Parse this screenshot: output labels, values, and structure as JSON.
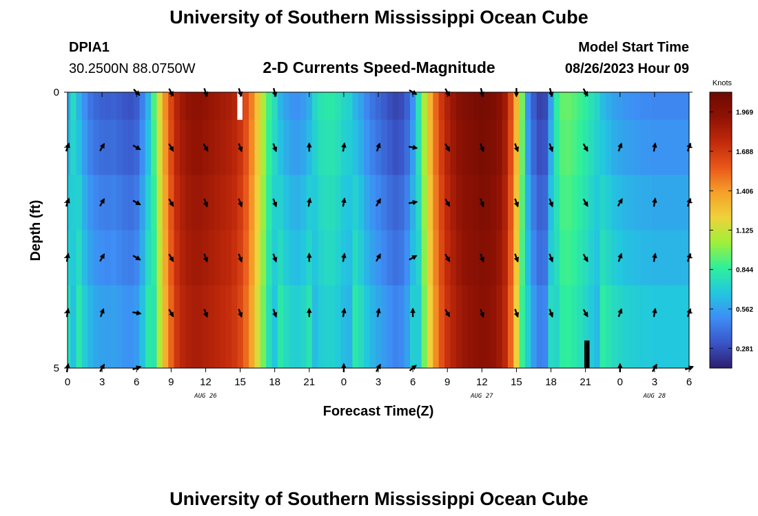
{
  "header": {
    "title": "University of Southern Mississippi Ocean Cube",
    "station_id": "DPIA1",
    "location": "30.2500N  88.0750W",
    "subtitle": "2-D Currents Speed-Magnitude",
    "model_start_label": "Model Start Time",
    "model_start_value": "08/26/2023 Hour 09"
  },
  "footer": {
    "title": "University of Southern Mississippi Ocean Cube"
  },
  "colors": {
    "palette": [
      "#2d1e6e",
      "#3a55c8",
      "#3e8df5",
      "#22c7df",
      "#2ff09a",
      "#9ef03a",
      "#efd23b",
      "#f6a029",
      "#e8571a",
      "#c22a0b",
      "#8f1204",
      "#6d0a02"
    ],
    "arrow": "#000000",
    "missing": "#ffffff",
    "extreme_low": "#000000"
  },
  "chart_data": {
    "type": "heatmap",
    "title": "2-D Currents Speed-Magnitude",
    "xlabel": "Forecast Time(Z)",
    "ylabel": "Depth (ft)",
    "x_range": [
      0,
      54
    ],
    "y_range": [
      0,
      5
    ],
    "x_ticks": [
      0,
      3,
      6,
      9,
      12,
      15,
      18,
      21,
      24,
      27,
      30,
      33,
      36,
      39,
      42,
      45,
      48,
      51,
      54
    ],
    "x_tick_labels": [
      "0",
      "3",
      "6",
      "9",
      "12",
      "15",
      "18",
      "21",
      "0",
      "3",
      "6",
      "9",
      "12",
      "15",
      "18",
      "21",
      "0",
      "3",
      "6"
    ],
    "date_labels": [
      {
        "hour": 12,
        "text": "AUG 26"
      },
      {
        "hour": 36,
        "text": "AUG 27"
      },
      {
        "hour": 51,
        "text": "AUG 28"
      }
    ],
    "y_ticks": [
      0,
      1,
      2,
      3,
      4,
      5
    ],
    "y_tick_labels": [
      "0",
      "",
      "",
      "",
      "",
      "5"
    ],
    "colorbar": {
      "unit": "Knots",
      "min": 0.14,
      "max": 2.11,
      "ticks": [
        0.281,
        0.562,
        0.844,
        1.125,
        1.406,
        1.688,
        1.969
      ],
      "tick_labels": [
        "0.281",
        "0.562",
        "0.844",
        "1.125",
        "1.406",
        "1.688",
        "1.969"
      ]
    },
    "speed_profile": {
      "hours": [
        0,
        0.5,
        1,
        1.5,
        2,
        2.5,
        3,
        3.5,
        4,
        4.5,
        5,
        5.5,
        6,
        6.5,
        7,
        7.5,
        8,
        8.5,
        9,
        9.5,
        10,
        10.5,
        11,
        11.5,
        12,
        12.5,
        13,
        13.5,
        14,
        14.5,
        15,
        15.5,
        16,
        16.5,
        17,
        17.5,
        18,
        18.5,
        19,
        19.5,
        20,
        20.5,
        21,
        21.5,
        22,
        22.5,
        23,
        23.5,
        24,
        24.5,
        25,
        25.5,
        26,
        26.5,
        27,
        27.5,
        28,
        28.5,
        29,
        29.5,
        30,
        30.5,
        31,
        31.5,
        32,
        32.5,
        33,
        33.5,
        34,
        34.5,
        35,
        35.5,
        36,
        36.5,
        37,
        37.5,
        38,
        38.5,
        39,
        39.5,
        40,
        40.5,
        41,
        41.5,
        42,
        42.5,
        43,
        43.5,
        44,
        44.5,
        45,
        45.5,
        46,
        46.5,
        47,
        47.5,
        48,
        48.5,
        49,
        49.5,
        50,
        50.5,
        51,
        51.5,
        52,
        52.5,
        53,
        53.5,
        54
      ],
      "speeds": [
        0.62,
        0.74,
        0.66,
        0.54,
        0.46,
        0.42,
        0.4,
        0.39,
        0.4,
        0.38,
        0.36,
        0.35,
        0.38,
        0.5,
        0.66,
        0.88,
        1.15,
        1.42,
        1.62,
        1.78,
        1.86,
        1.9,
        1.92,
        1.92,
        1.9,
        1.88,
        1.86,
        1.84,
        1.82,
        1.78,
        1.72,
        1.6,
        1.45,
        1.25,
        1.05,
        0.86,
        0.75,
        0.66,
        0.6,
        0.56,
        0.55,
        0.58,
        0.64,
        0.72,
        0.78,
        0.8,
        0.8,
        0.77,
        0.72,
        0.7,
        0.66,
        0.6,
        0.52,
        0.46,
        0.42,
        0.38,
        0.34,
        0.31,
        0.33,
        0.4,
        0.55,
        0.78,
        1.05,
        1.3,
        1.52,
        1.68,
        1.8,
        1.88,
        1.94,
        1.98,
        2.0,
        2.02,
        2.04,
        2.03,
        2.0,
        1.95,
        1.85,
        1.62,
        1.3,
        0.95,
        0.55,
        0.38,
        0.3,
        0.32,
        0.6,
        0.82,
        0.92,
        0.93,
        0.9,
        0.86,
        0.82,
        0.77,
        0.72,
        0.68,
        0.64,
        0.6,
        0.58,
        0.56,
        0.55,
        0.54,
        0.53,
        0.53,
        0.52,
        0.52,
        0.52,
        0.52,
        0.52,
        0.52,
        0.52
      ],
      "depth_offsets": [
        0.02,
        0.0,
        -0.03,
        -0.05,
        -0.08
      ]
    },
    "arrows": {
      "hours": [
        0,
        3,
        6,
        9,
        12,
        15,
        18,
        21,
        24,
        27,
        30,
        33,
        36,
        39,
        42,
        45,
        48,
        51,
        54
      ],
      "depths": [
        0,
        1,
        2,
        3,
        4,
        5
      ],
      "angles_deg": [
        [
          null,
          null,
          315,
          300,
          290,
          290,
          285,
          null,
          null,
          null,
          330,
          300,
          285,
          270,
          285,
          300,
          null,
          null,
          null
        ],
        [
          70,
          60,
          330,
          300,
          300,
          290,
          290,
          90,
          80,
          70,
          350,
          300,
          290,
          290,
          290,
          300,
          70,
          80,
          70
        ],
        [
          70,
          60,
          330,
          300,
          290,
          290,
          290,
          80,
          80,
          60,
          10,
          300,
          290,
          290,
          290,
          300,
          60,
          80,
          70
        ],
        [
          80,
          60,
          330,
          300,
          290,
          290,
          290,
          90,
          80,
          60,
          30,
          300,
          290,
          290,
          290,
          300,
          70,
          80,
          70
        ],
        [
          80,
          70,
          350,
          300,
          290,
          290,
          290,
          90,
          80,
          80,
          90,
          300,
          290,
          290,
          290,
          300,
          70,
          80,
          70
        ],
        [
          80,
          60,
          20,
          null,
          null,
          null,
          null,
          null,
          90,
          60,
          40,
          null,
          null,
          null,
          null,
          null,
          90,
          60,
          20
        ]
      ]
    },
    "missing_cells": [
      {
        "x0": 14.75,
        "x1": 15.2,
        "y0": 0,
        "y1": 0.5
      }
    ],
    "extreme_low_cells": [
      {
        "x0": 44.9,
        "x1": 45.35,
        "y0": 4.5,
        "y1": 5
      }
    ]
  }
}
